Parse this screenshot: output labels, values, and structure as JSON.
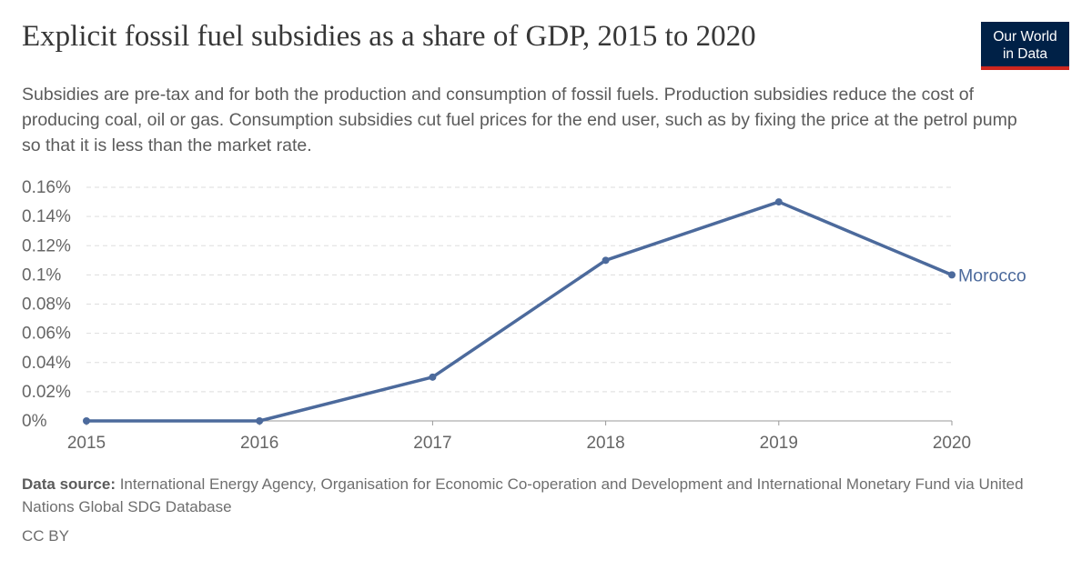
{
  "title": "Explicit fossil fuel subsidies as a share of GDP, 2015 to 2020",
  "subtitle": "Subsidies are pre-tax and for both the production and consumption of fossil fuels. Production subsidies reduce the cost of producing coal, oil or gas. Consumption subsidies cut fuel prices for the end user, such as by fixing the price at the petrol pump so that it is less than the market rate.",
  "logo": {
    "line1": "Our World",
    "line2": "in Data"
  },
  "footer": {
    "source_label": "Data source:",
    "source_text": " International Energy Agency, Organisation for Economic Co-operation and Development and International Monetary Fund via United Nations Global SDG Database",
    "license": "CC BY"
  },
  "chart_data": {
    "type": "line",
    "x": [
      2015,
      2016,
      2017,
      2018,
      2019,
      2020
    ],
    "series": [
      {
        "name": "Morocco",
        "values": [
          0,
          0,
          0.03,
          0.11,
          0.15,
          0.1
        ],
        "color": "#4c6a9c"
      }
    ],
    "ylim": [
      0,
      0.16
    ],
    "yticks": [
      0,
      0.02,
      0.04,
      0.06,
      0.08,
      0.1,
      0.12,
      0.14,
      0.16
    ],
    "ytick_labels": [
      "0%",
      "0.02%",
      "0.04%",
      "0.06%",
      "0.08%",
      "0.1%",
      "0.12%",
      "0.14%",
      "0.16%"
    ],
    "xtick_labels": [
      "2015",
      "2016",
      "2017",
      "2018",
      "2019",
      "2020"
    ],
    "grid": "horizontal dashed",
    "legend": "line-end label"
  }
}
